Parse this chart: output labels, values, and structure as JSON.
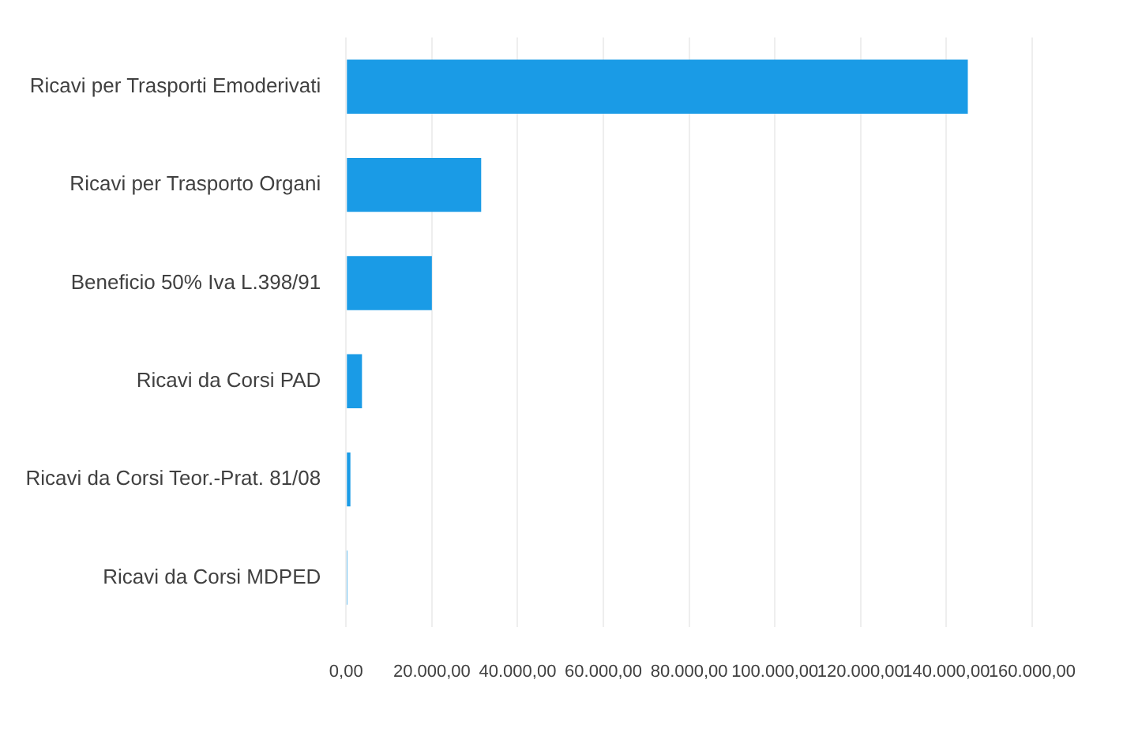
{
  "chart_data": {
    "type": "bar",
    "orientation": "horizontal",
    "categories": [
      "Ricavi per Trasporti Emoderivati",
      "Ricavi per Trasporto Organi",
      "Beneficio 50% Iva L.398/91",
      "Ricavi da Corsi PAD",
      "Ricavi da Corsi Teor.-Prat. 81/08",
      "Ricavi da Corsi MDPED"
    ],
    "values": [
      145000,
      31500,
      20000,
      3700,
      1000,
      300
    ],
    "color": "#1a9be6",
    "xlim": [
      0,
      160000
    ],
    "xticks": [
      {
        "value": 0,
        "label": "0,00"
      },
      {
        "value": 20000,
        "label": "20.000,00"
      },
      {
        "value": 40000,
        "label": "40.000,00"
      },
      {
        "value": 60000,
        "label": "60.000,00"
      },
      {
        "value": 80000,
        "label": "80.000,00"
      },
      {
        "value": 100000,
        "label": "100.000,00"
      },
      {
        "value": 120000,
        "label": "120.000,00"
      },
      {
        "value": 140000,
        "label": "140.000,00"
      },
      {
        "value": 160000,
        "label": "160.000,00"
      }
    ],
    "grid": "x",
    "legend": false
  }
}
